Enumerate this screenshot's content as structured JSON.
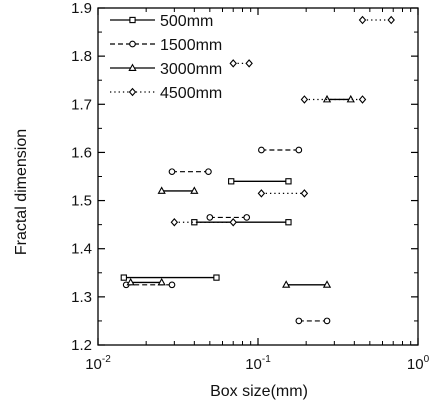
{
  "chart_data": {
    "type": "scatter",
    "title": "",
    "xlabel": "Box size(mm)",
    "ylabel": "Fractal dimension",
    "xscale": "log",
    "xlim": [
      0.01,
      1
    ],
    "ylim": [
      1.2,
      1.9
    ],
    "x_ticks": [
      {
        "value": 0.01,
        "base": "10",
        "exp": "-2"
      },
      {
        "value": 0.1,
        "base": "10",
        "exp": "-1"
      },
      {
        "value": 1,
        "base": "10",
        "exp": "0"
      }
    ],
    "y_ticks": [
      "1.2",
      "1.3",
      "1.4",
      "1.5",
      "1.6",
      "1.7",
      "1.8",
      "1.9"
    ],
    "legend_position": "top-left",
    "grid": false,
    "series": [
      {
        "name": "500mm",
        "line_style": "solid",
        "marker": "square",
        "segments": [
          {
            "x": [
              0.0145,
              0.055
            ],
            "y": 1.34
          },
          {
            "x": [
              0.04,
              0.155
            ],
            "y": 1.455
          },
          {
            "x": [
              0.068,
              0.155
            ],
            "y": 1.54
          }
        ]
      },
      {
        "name": "1500mm",
        "line_style": "dashed",
        "marker": "circle",
        "segments": [
          {
            "x": [
              0.015,
              0.029
            ],
            "y": 1.325
          },
          {
            "x": [
              0.029,
              0.049
            ],
            "y": 1.56
          },
          {
            "x": [
              0.05,
              0.085
            ],
            "y": 1.465
          },
          {
            "x": [
              0.105,
              0.18
            ],
            "y": 1.605
          },
          {
            "x": [
              0.18,
              0.27
            ],
            "y": 1.25
          }
        ]
      },
      {
        "name": "3000mm",
        "line_style": "solid",
        "marker": "triangle",
        "segments": [
          {
            "x": [
              0.016,
              0.025
            ],
            "y": 1.33
          },
          {
            "x": [
              0.025,
              0.04
            ],
            "y": 1.52
          },
          {
            "x": [
              0.15,
              0.27
            ],
            "y": 1.325
          },
          {
            "x": [
              0.27,
              0.38
            ],
            "y": 1.71
          }
        ]
      },
      {
        "name": "4500mm",
        "line_style": "dotted",
        "marker": "diamond",
        "segments": [
          {
            "x": [
              0.03,
              0.07
            ],
            "y": 1.455
          },
          {
            "x": [
              0.07,
              0.088
            ],
            "y": 1.785
          },
          {
            "x": [
              0.105,
              0.195
            ],
            "y": 1.515
          },
          {
            "x": [
              0.195,
              0.45
            ],
            "y": 1.71
          },
          {
            "x": [
              0.45,
              0.68
            ],
            "y": 1.875
          }
        ]
      }
    ]
  }
}
